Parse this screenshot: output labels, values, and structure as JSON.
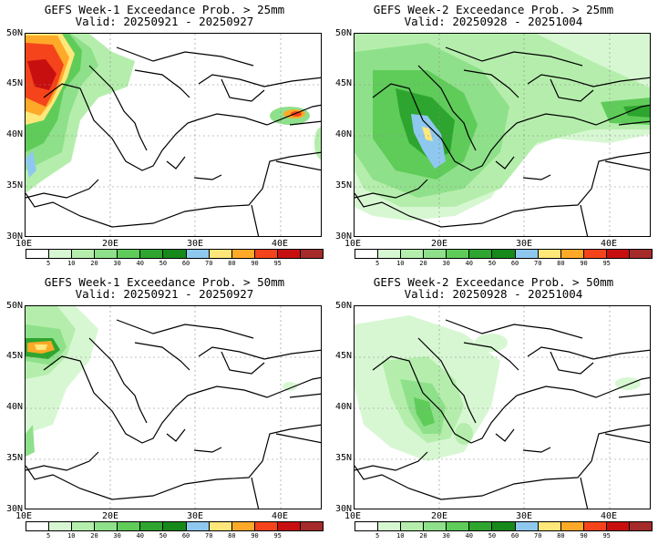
{
  "panels": [
    {
      "title": "GEFS Week-1 Exceedance Prob. > 25mm",
      "valid": "Valid: 20250921 - 20250927"
    },
    {
      "title": "GEFS Week-2 Exceedance Prob. > 25mm",
      "valid": "Valid: 20250928 - 20251004"
    },
    {
      "title": "GEFS Week-1 Exceedance Prob. > 50mm",
      "valid": "Valid: 20250921 - 20250927"
    },
    {
      "title": "GEFS Week-2 Exceedance Prob. > 50mm",
      "valid": "Valid: 20250928 - 20251004"
    }
  ],
  "lat_labels": [
    "50N",
    "45N",
    "40N",
    "35N",
    "30N"
  ],
  "lon_labels": [
    "10E",
    "20E",
    "30E",
    "40E"
  ],
  "colorbar": {
    "labels": [
      "5",
      "10",
      "20",
      "30",
      "40",
      "50",
      "60",
      "70",
      "80",
      "90",
      "95"
    ],
    "colors": [
      "#ffffff",
      "#d7f7d2",
      "#b5eeac",
      "#8fe08a",
      "#5fcc5a",
      "#2ea52e",
      "#16891a",
      "#8fc8ee",
      "#ffe77a",
      "#ffa928",
      "#f5441b",
      "#c80f10",
      "#a52a2a"
    ]
  }
}
